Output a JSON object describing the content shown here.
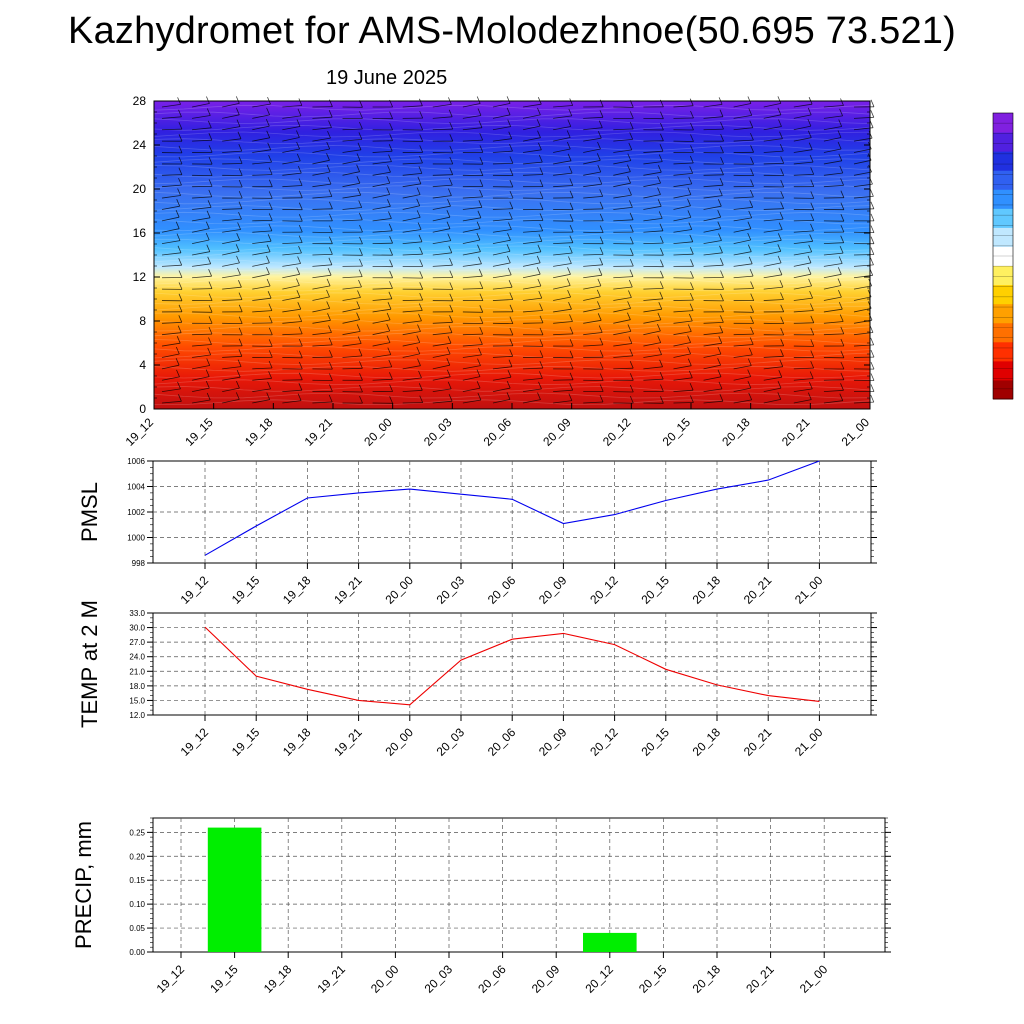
{
  "title": "Kazhydromet for AMS-Molodezhnoe(50.695 73.521)",
  "subtitle": "19 June 2025",
  "chart_data": [
    {
      "type": "heatmap",
      "name": "cross-section",
      "x": [
        "19_12",
        "19_15",
        "19_18",
        "19_21",
        "20_00",
        "20_03",
        "20_06",
        "20_09",
        "20_12",
        "20_15",
        "20_18",
        "20_21",
        "21_00"
      ],
      "yticks": [
        0,
        4,
        8,
        12,
        16,
        20,
        24,
        28
      ],
      "ylim": [
        0,
        28
      ],
      "colorbar_colors": [
        "#a00000",
        "#e00000",
        "#ff3000",
        "#ff7000",
        "#ffa000",
        "#ffd000",
        "#fff060",
        "#ffffff",
        "#c0e8ff",
        "#60c8ff",
        "#3090ff",
        "#3060f0",
        "#2030e0",
        "#5020e0",
        "#8020e0"
      ]
    },
    {
      "type": "line",
      "name": "PMSL",
      "ylabel": "PMSL",
      "ylim": [
        998,
        1006
      ],
      "yticks": [
        998,
        1000,
        1002,
        1004,
        1006
      ],
      "color": "#0000ee",
      "x": [
        "19_12",
        "19_15",
        "19_18",
        "19_21",
        "20_00",
        "20_03",
        "20_06",
        "20_09",
        "20_12",
        "20_15",
        "20_18",
        "20_21",
        "21_00"
      ],
      "values": [
        998.6,
        1000.9,
        1003.1,
        1003.5,
        1003.8,
        1003.4,
        1003.0,
        1001.1,
        1001.8,
        1002.9,
        1003.8,
        1004.5,
        1006.0
      ]
    },
    {
      "type": "line",
      "name": "TEMP at 2 M",
      "ylabel": "TEMP at 2 M",
      "ylim": [
        12,
        33
      ],
      "yticks": [
        "12.0",
        "15.0",
        "18.0",
        "21.0",
        "24.0",
        "27.0",
        "30.0",
        "33.0"
      ],
      "color": "#ee0000",
      "x": [
        "19_12",
        "19_15",
        "19_18",
        "19_21",
        "20_00",
        "20_03",
        "20_06",
        "20_09",
        "20_12",
        "20_15",
        "20_18",
        "20_21",
        "21_00"
      ],
      "values": [
        30.1,
        20.0,
        17.3,
        15.0,
        14.1,
        23.3,
        27.6,
        28.8,
        26.5,
        21.4,
        18.2,
        16.0,
        14.8
      ]
    },
    {
      "type": "bar",
      "name": "PRECIP",
      "ylabel": "PRECIP, mm",
      "ylim": [
        0,
        0.28
      ],
      "yticks": [
        "0.00",
        "0.05",
        "0.10",
        "0.15",
        "0.20",
        "0.25"
      ],
      "color": "#00ee00",
      "categories": [
        "19_12",
        "19_15",
        "19_18",
        "19_21",
        "20_00",
        "20_03",
        "20_06",
        "20_09",
        "20_12",
        "20_15",
        "20_18",
        "20_21",
        "21_00"
      ],
      "values": [
        0,
        0.26,
        0,
        0,
        0,
        0,
        0,
        0,
        0.04,
        0,
        0,
        0,
        0
      ]
    }
  ]
}
